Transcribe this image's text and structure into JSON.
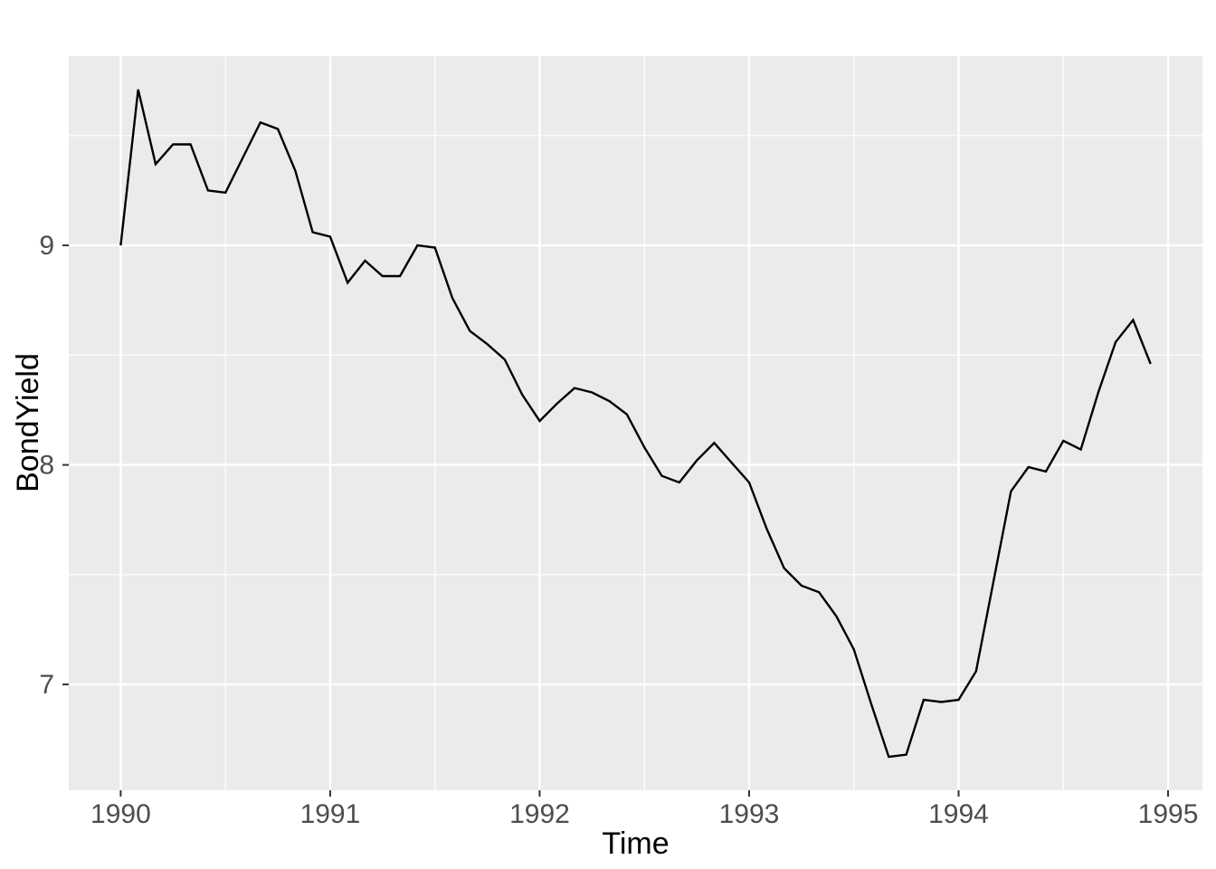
{
  "chart_data": {
    "type": "line",
    "title": "",
    "xlabel": "Time",
    "ylabel": "BondYield",
    "x_tick_labels": [
      "1990",
      "1991",
      "1992",
      "1993",
      "1994",
      "1995"
    ],
    "x_ticks": [
      1990,
      1991,
      1992,
      1993,
      1994,
      1995
    ],
    "y_tick_labels": [
      "7",
      "8",
      "9"
    ],
    "y_ticks": [
      7,
      8,
      9
    ],
    "x_minor_gridlines": [
      1990.5,
      1991.5,
      1992.5,
      1993.5,
      1994.5
    ],
    "y_minor_gridlines": [
      7.5,
      8.5,
      9.5
    ],
    "xlim": [
      1989.752,
      1995.164
    ],
    "ylim": [
      6.518,
      9.862
    ],
    "grid": "white major and minor gridlines on grey panel",
    "legend": "none",
    "frequency": "monthly",
    "periods": [
      "1990-01",
      "1990-02",
      "1990-03",
      "1990-04",
      "1990-05",
      "1990-06",
      "1990-07",
      "1990-08",
      "1990-09",
      "1990-10",
      "1990-11",
      "1990-12",
      "1991-01",
      "1991-02",
      "1991-03",
      "1991-04",
      "1991-05",
      "1991-06",
      "1991-07",
      "1991-08",
      "1991-09",
      "1991-10",
      "1991-11",
      "1991-12",
      "1992-01",
      "1992-02",
      "1992-03",
      "1992-04",
      "1992-05",
      "1992-06",
      "1992-07",
      "1992-08",
      "1992-09",
      "1992-10",
      "1992-11",
      "1992-12",
      "1993-01",
      "1993-02",
      "1993-03",
      "1993-04",
      "1993-05",
      "1993-06",
      "1993-07",
      "1993-08",
      "1993-09",
      "1993-10",
      "1993-11",
      "1993-12",
      "1994-01",
      "1994-02",
      "1994-03",
      "1994-04",
      "1994-05",
      "1994-06",
      "1994-07",
      "1994-08",
      "1994-09",
      "1994-10",
      "1994-11",
      "1994-12"
    ],
    "series": [
      {
        "name": "BondYield",
        "color": "#000000",
        "x_start_year": 1990,
        "values": [
          9.0,
          9.71,
          9.37,
          9.46,
          9.46,
          9.25,
          9.24,
          9.4,
          9.56,
          9.53,
          9.34,
          9.06,
          9.04,
          8.83,
          8.93,
          8.86,
          8.86,
          9.0,
          8.99,
          8.76,
          8.61,
          8.55,
          8.48,
          8.32,
          8.2,
          8.28,
          8.35,
          8.33,
          8.29,
          8.23,
          8.08,
          7.95,
          7.92,
          8.02,
          8.1,
          8.01,
          7.92,
          7.71,
          7.53,
          7.45,
          7.42,
          7.31,
          7.16,
          6.91,
          6.67,
          6.68,
          6.93,
          6.92,
          6.93,
          7.06,
          7.47,
          7.88,
          7.99,
          7.97,
          8.11,
          8.07,
          8.33,
          8.56,
          8.66,
          8.46
        ]
      }
    ]
  },
  "style": {
    "panel_bg": "#EBEBEB",
    "grid_color": "#FFFFFF",
    "tick_mark_color": "#333333",
    "tick_label_color": "#4D4D4D",
    "axis_title_color": "#000000",
    "line_color": "#000000",
    "page_bg": "#FFFFFF"
  }
}
